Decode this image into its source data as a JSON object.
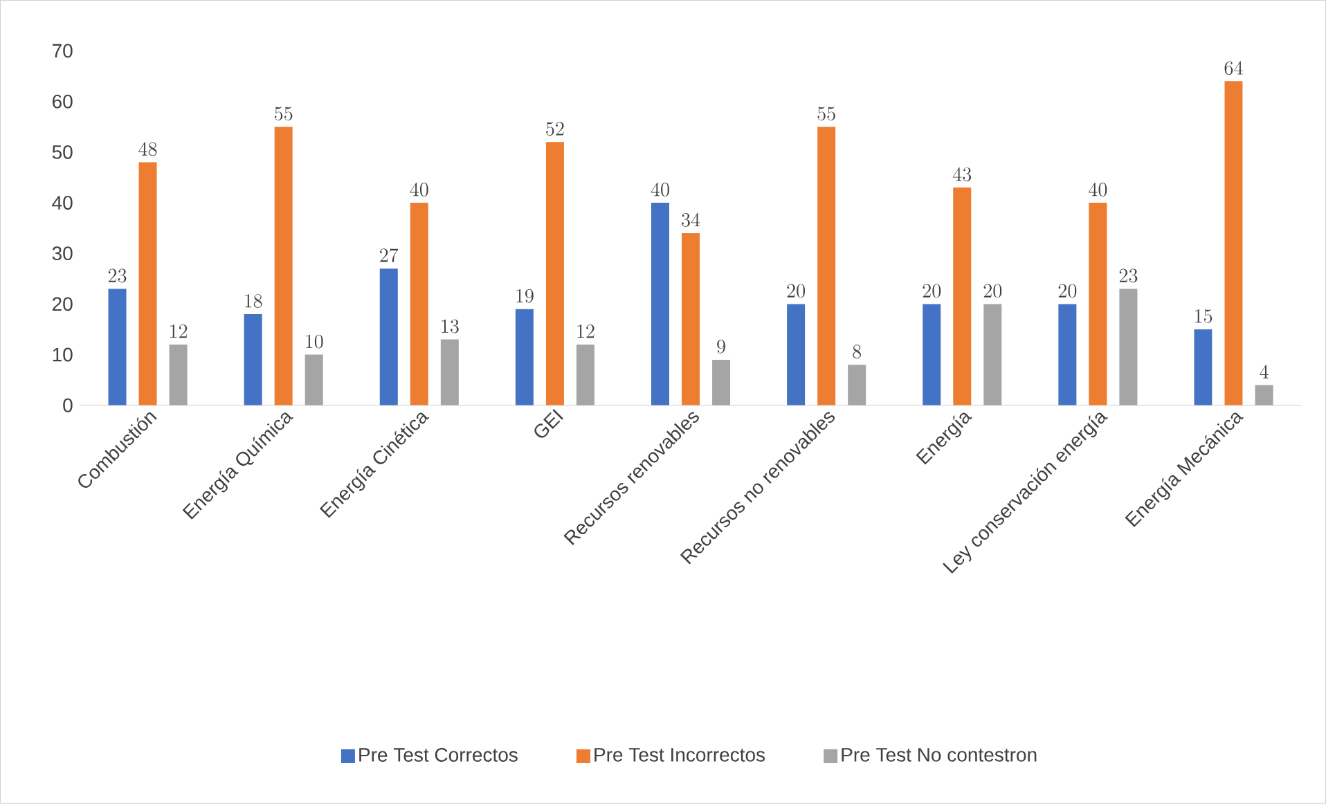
{
  "chart_data": {
    "type": "bar",
    "categories": [
      "Combustión",
      "Energía Química",
      "Energía Cinética",
      "GEI",
      "Recursos renovables",
      "Recursos no renovables",
      "Energía",
      "Ley conservación energía",
      "Energía Mecánica"
    ],
    "series": [
      {
        "name": "Pre Test Correctos",
        "color": "#4472c4",
        "values": [
          23,
          18,
          27,
          19,
          40,
          20,
          20,
          20,
          15
        ]
      },
      {
        "name": "Pre Test Incorrectos",
        "color": "#ed7d31",
        "values": [
          48,
          55,
          40,
          52,
          34,
          55,
          43,
          40,
          64
        ]
      },
      {
        "name": "Pre Test No contestron",
        "color": "#a5a5a5",
        "values": [
          12,
          10,
          13,
          12,
          9,
          8,
          20,
          23,
          4
        ]
      }
    ],
    "ylim": [
      0,
      70
    ],
    "yticks": [
      0,
      10,
      20,
      30,
      40,
      50,
      60,
      70
    ],
    "grid": false,
    "legend": "bottom",
    "data_labels": true
  }
}
